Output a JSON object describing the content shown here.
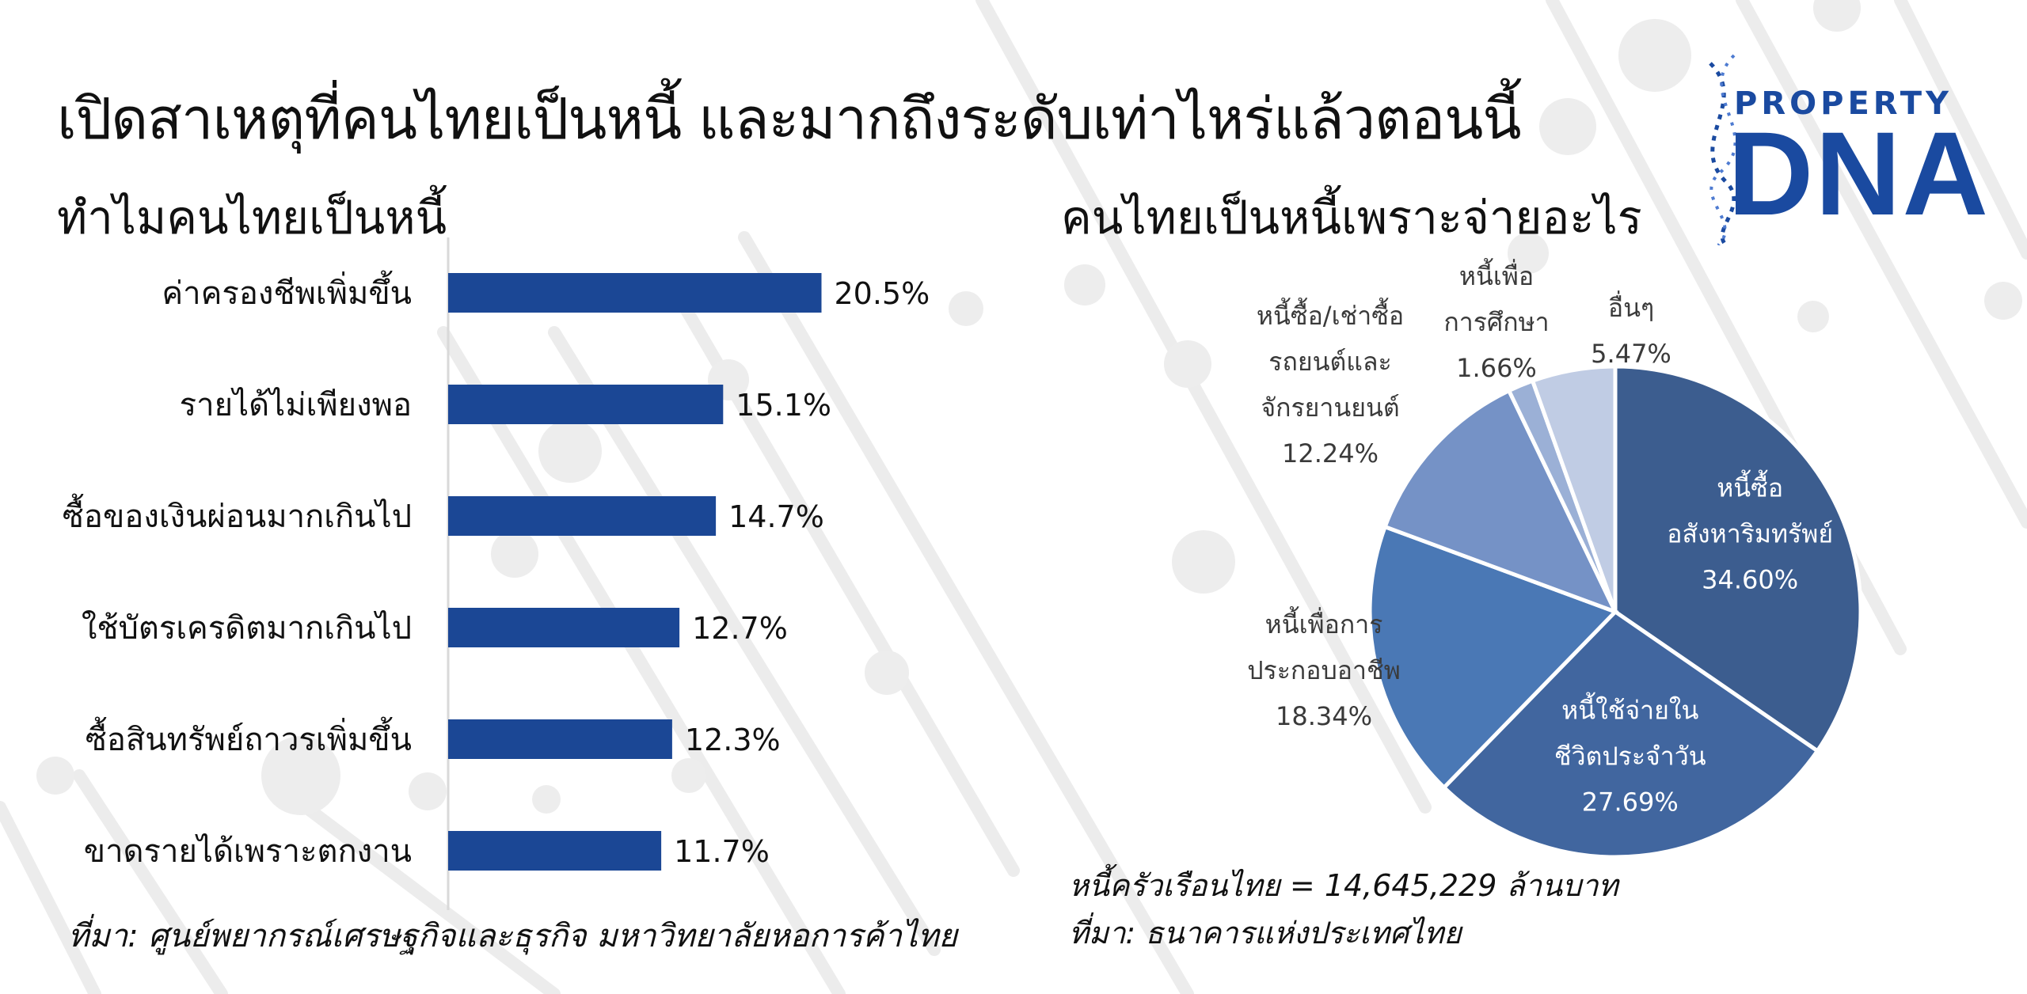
{
  "title": "เปิดสาเหตุที่คนไทยเป็นหนี้ และมากถึงระดับเท่าไหร่แล้วตอนนี้",
  "logo": {
    "line1": "PROPERTY",
    "line2": "DNA",
    "color": "#1a4aa0"
  },
  "left_panel": {
    "heading": "ทำไมคนไทยเป็นหนี้",
    "source": "ที่มา: ศูนย์พยากรณ์เศรษฐกิจและธุรกิจ มหาวิทยาลัยหอการค้าไทย"
  },
  "right_panel": {
    "heading": "คนไทยเป็นหนี้เพราะจ่ายอะไร",
    "note": "หนี้ครัวเรือนไทย = 14,645,229 ล้านบาท",
    "source": "ที่มา: ธนาคารแห่งประเทศไทย"
  },
  "chart_data": [
    {
      "type": "bar",
      "orientation": "horizontal",
      "categories": [
        "ค่าครองชีพเพิ่มขึ้น",
        "รายได้ไม่เพียงพอ",
        "ซื้อของเงินผ่อนมากเกินไป",
        "ใช้บัตรเครดิตมากเกินไป",
        "ซื้อสินทรัพย์ถาวรเพิ่มขึ้น",
        "ขาดรายได้เพราะตกงาน"
      ],
      "values": [
        20.5,
        15.1,
        14.7,
        12.7,
        12.3,
        11.7
      ],
      "value_labels": [
        "20.5%",
        "15.1%",
        "14.7%",
        "12.7%",
        "12.3%",
        "11.7%"
      ],
      "unit": "%",
      "xlim": [
        0,
        30
      ],
      "color": "#1b4795",
      "grid": false
    },
    {
      "type": "pie",
      "start_angle_deg": 0,
      "direction": "clockwise",
      "slices": [
        {
          "label_lines": [
            "หนี้ซื้อ",
            "อสังหาริมทรัพย์",
            "34.60%"
          ],
          "value": 34.6,
          "color": "#3c5d8f",
          "label_inside": true
        },
        {
          "label_lines": [
            "หนี้ใช้จ่ายใน",
            "ชีวิตประจำวัน",
            "27.69%"
          ],
          "value": 27.69,
          "color": "#41669f",
          "label_inside": true
        },
        {
          "label_lines": [
            "หนี้เพื่อการ",
            "ประกอบอาชีพ",
            "18.34%"
          ],
          "value": 18.34,
          "color": "#4a78b5",
          "label_inside": false
        },
        {
          "label_lines": [
            "หนี้ซื้อ/เช่าซื้อ",
            "รถยนต์และ",
            "จักรยานยนต์",
            "12.24%"
          ],
          "value": 12.24,
          "color": "#7592c6",
          "label_inside": false
        },
        {
          "label_lines": [
            "หนี้เพื่อ",
            "การศึกษา",
            "1.66%"
          ],
          "value": 1.66,
          "color": "#9bb0d6",
          "label_inside": false
        },
        {
          "label_lines": [
            "อื่นๆ",
            "5.47%"
          ],
          "value": 5.47,
          "color": "#c0cce4",
          "label_inside": false
        }
      ]
    }
  ]
}
